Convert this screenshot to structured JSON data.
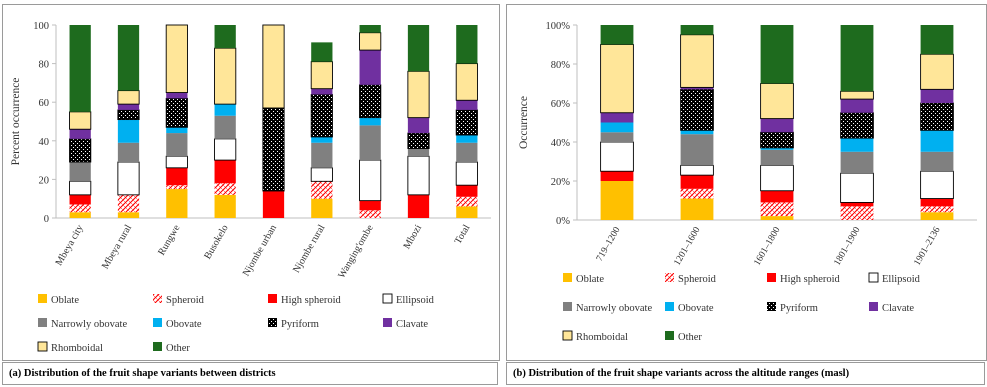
{
  "legend_colors": {
    "Oblate": "#ffc000",
    "Spheroid": "#ff0000",
    "High spheroid": "#ff0000",
    "Ellipsoid": "#ffffff",
    "Narrowly obovate": "#808080",
    "Obovate": "#00b0f0",
    "Pyriform": "#000000",
    "Clavate": "#7030a0",
    "Rhomboidal": "#ffe699",
    "Other": "#1e6b1e"
  },
  "chart_data": [
    {
      "type": "bar",
      "stacked": true,
      "caption": "(a) Distribution of the fruit shape variants between districts",
      "ylabel": "Percent occurrence",
      "xlabel": "",
      "ylim": [
        0,
        100
      ],
      "yticks": [
        "0",
        "20",
        "40",
        "60",
        "80",
        "100"
      ],
      "legend_position": "bottom",
      "categories": [
        "Mbeya city",
        "Mbeya rural",
        "Rungwe",
        "Busokelo",
        "Njombe urban",
        "Njombe rural",
        "Wanging'ombe",
        "Mbozi",
        "Total"
      ],
      "series": [
        {
          "name": "Oblate",
          "values": [
            3,
            3,
            15,
            12,
            0,
            10,
            0,
            0,
            6
          ]
        },
        {
          "name": "Spheroid",
          "values": [
            4,
            9,
            2,
            6,
            0,
            9,
            4,
            0,
            5
          ]
        },
        {
          "name": "High spheroid",
          "values": [
            5,
            0,
            9,
            12,
            14,
            0,
            5,
            12,
            6
          ]
        },
        {
          "name": "Ellipsoid",
          "values": [
            7,
            17,
            6,
            11,
            0,
            7,
            21,
            20,
            12
          ]
        },
        {
          "name": "Narrowly obovate",
          "values": [
            10,
            10,
            12,
            12,
            0,
            13,
            18,
            4,
            10
          ]
        },
        {
          "name": "Obovate",
          "values": [
            0,
            12,
            3,
            6,
            0,
            3,
            4,
            0,
            4
          ]
        },
        {
          "name": "Pyriform",
          "values": [
            12,
            5,
            15,
            0,
            43,
            22,
            17,
            8,
            13
          ]
        },
        {
          "name": "Clavate",
          "values": [
            5,
            3,
            3,
            0,
            0,
            3,
            18,
            8,
            5
          ]
        },
        {
          "name": "Rhomboidal",
          "values": [
            9,
            7,
            35,
            29,
            43,
            14,
            9,
            24,
            19
          ]
        },
        {
          "name": "Other",
          "values": [
            45,
            34,
            0,
            12,
            0,
            10,
            4,
            24,
            20
          ]
        }
      ]
    },
    {
      "type": "bar",
      "stacked": true,
      "caption": "(b) Distribution of the fruit shape variants across the altitude ranges (masl)",
      "ylabel": "Occurrence",
      "xlabel": "",
      "ylim": [
        0,
        100
      ],
      "yticks": [
        "0%",
        "20%",
        "40%",
        "60%",
        "80%",
        "100%"
      ],
      "legend_position": "bottom",
      "categories": [
        "719–1200",
        "1201–1600",
        "1601–1800",
        "1801–1900",
        "1901–2136"
      ],
      "series": [
        {
          "name": "Oblate",
          "values": [
            20,
            11,
            2,
            0,
            4
          ]
        },
        {
          "name": "Spheroid",
          "values": [
            0,
            5,
            7,
            7,
            3
          ]
        },
        {
          "name": "High spheroid",
          "values": [
            5,
            7,
            6,
            2,
            4
          ]
        },
        {
          "name": "Ellipsoid",
          "values": [
            15,
            5,
            13,
            15,
            14
          ]
        },
        {
          "name": "Narrowly obovate",
          "values": [
            5,
            16,
            8,
            11,
            10
          ]
        },
        {
          "name": "Obovate",
          "values": [
            5,
            2,
            1,
            7,
            11
          ]
        },
        {
          "name": "Pyriform",
          "values": [
            0,
            21,
            8,
            13,
            14
          ]
        },
        {
          "name": "Clavate",
          "values": [
            5,
            1,
            7,
            7,
            7
          ]
        },
        {
          "name": "Rhomboidal",
          "values": [
            35,
            27,
            18,
            4,
            18
          ]
        },
        {
          "name": "Other",
          "values": [
            10,
            5,
            30,
            34,
            15
          ]
        }
      ]
    }
  ]
}
